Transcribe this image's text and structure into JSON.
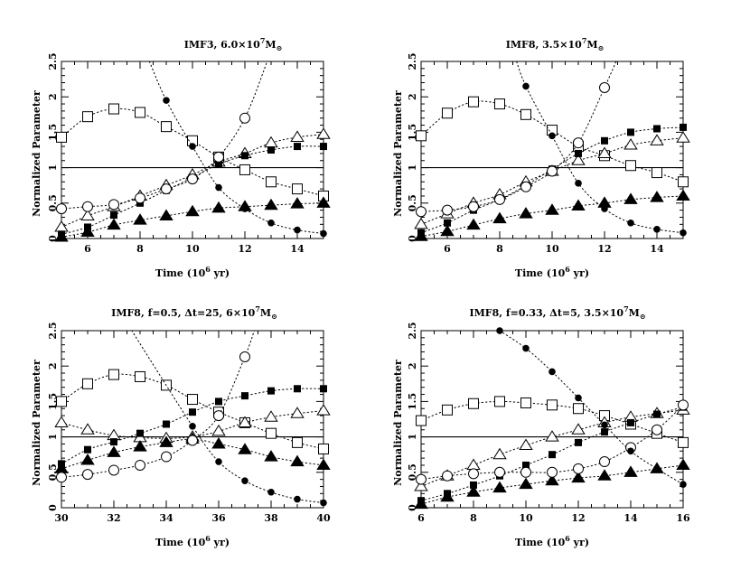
{
  "chart_data": [
    {
      "type": "line",
      "title": "IMF3, 6.0×10",
      "title_exp": "7",
      "title_unit": "M",
      "title_sub": "⊙",
      "xlabel": "Time (10",
      "xlabel_exp": "6",
      "xlabel_tail": " yr)",
      "ylabel": "Normalized Parameter",
      "xlim": [
        5,
        15
      ],
      "ylim": [
        0,
        2.5
      ],
      "xticks": [
        6,
        8,
        10,
        12,
        14
      ],
      "yticks": [
        0,
        0.5,
        1,
        1.5,
        2,
        2.5
      ],
      "reference_y": 1,
      "series": [
        {
          "marker": "open-square",
          "x": [
            5,
            6,
            7,
            8,
            9,
            10,
            11,
            12,
            13,
            14,
            15
          ],
          "values": [
            1.43,
            1.72,
            1.83,
            1.78,
            1.58,
            1.38,
            1.15,
            0.97,
            0.8,
            0.7,
            0.6
          ]
        },
        {
          "marker": "open-triangle",
          "x": [
            5,
            6,
            7,
            8,
            9,
            10,
            11,
            12,
            13,
            14,
            15
          ],
          "values": [
            0.16,
            0.32,
            0.45,
            0.6,
            0.75,
            0.9,
            1.08,
            1.2,
            1.35,
            1.43,
            1.47
          ]
        },
        {
          "marker": "filled-square",
          "x": [
            5,
            6,
            7,
            8,
            9,
            10,
            11,
            12,
            13,
            14,
            15
          ],
          "values": [
            0.06,
            0.16,
            0.33,
            0.5,
            0.68,
            0.86,
            1.05,
            1.17,
            1.25,
            1.3,
            1.3
          ]
        },
        {
          "marker": "filled-triangle",
          "x": [
            5,
            6,
            7,
            8,
            9,
            10,
            11,
            12,
            13,
            14,
            15
          ],
          "values": [
            0.02,
            0.09,
            0.19,
            0.26,
            0.32,
            0.38,
            0.43,
            0.45,
            0.47,
            0.49,
            0.5
          ]
        },
        {
          "marker": "open-circle",
          "x": [
            5,
            6,
            7,
            8,
            9,
            10,
            11,
            12
          ],
          "values": [
            0.42,
            0.45,
            0.48,
            0.57,
            0.7,
            0.84,
            1.15,
            1.7
          ],
          "curve_to": [
            12.9,
            2.55
          ]
        },
        {
          "marker": "filled-circle",
          "x": [
            9,
            10,
            11,
            12,
            13,
            14,
            15
          ],
          "values": [
            1.95,
            1.3,
            0.72,
            0.42,
            0.22,
            0.12,
            0.07
          ],
          "curve_from": [
            8.3,
            2.55
          ]
        }
      ]
    },
    {
      "type": "line",
      "title": "IMF8, 3.5×10",
      "title_exp": "7",
      "title_unit": "M",
      "title_sub": "⊙",
      "xlabel": "Time (10",
      "xlabel_exp": "6",
      "xlabel_tail": " yr)",
      "ylabel": "Normalized Parameter",
      "xlim": [
        5,
        15
      ],
      "ylim": [
        0,
        2.5
      ],
      "xticks": [
        6,
        8,
        10,
        12,
        14
      ],
      "yticks": [
        0,
        0.5,
        1,
        1.5,
        2,
        2.5
      ],
      "reference_y": 1,
      "series": [
        {
          "marker": "open-square",
          "x": [
            5,
            6,
            7,
            8,
            9,
            10,
            11,
            12,
            13,
            14,
            15
          ],
          "values": [
            1.45,
            1.77,
            1.93,
            1.9,
            1.75,
            1.53,
            1.3,
            1.17,
            1.03,
            0.93,
            0.8
          ]
        },
        {
          "marker": "open-triangle",
          "x": [
            5,
            6,
            7,
            8,
            9,
            10,
            11,
            12,
            13,
            14,
            15
          ],
          "values": [
            0.2,
            0.35,
            0.5,
            0.62,
            0.8,
            0.95,
            1.1,
            1.2,
            1.32,
            1.38,
            1.42
          ]
        },
        {
          "marker": "filled-square",
          "x": [
            5,
            6,
            7,
            8,
            9,
            10,
            11,
            12,
            13,
            14,
            15
          ],
          "values": [
            0.08,
            0.22,
            0.4,
            0.55,
            0.75,
            0.98,
            1.2,
            1.38,
            1.5,
            1.55,
            1.57
          ]
        },
        {
          "marker": "filled-triangle",
          "x": [
            5,
            6,
            7,
            8,
            9,
            10,
            11,
            12,
            13,
            14,
            15
          ],
          "values": [
            0.03,
            0.1,
            0.19,
            0.28,
            0.35,
            0.4,
            0.46,
            0.5,
            0.55,
            0.58,
            0.6
          ]
        },
        {
          "marker": "open-circle",
          "x": [
            5,
            6,
            7,
            8,
            9,
            10,
            11,
            12
          ],
          "values": [
            0.38,
            0.4,
            0.45,
            0.55,
            0.73,
            0.95,
            1.35,
            2.13
          ],
          "curve_to": [
            12.5,
            2.55
          ]
        },
        {
          "marker": "filled-circle",
          "x": [
            9,
            10,
            11,
            12,
            13,
            14,
            15
          ],
          "values": [
            2.15,
            1.45,
            0.78,
            0.42,
            0.22,
            0.13,
            0.08
          ],
          "curve_from": [
            8.6,
            2.55
          ]
        }
      ]
    },
    {
      "type": "line",
      "title": "IMF8, f=0.5, Δt=25, 6×10",
      "title_exp": "7",
      "title_unit": "M",
      "title_sub": "⊙",
      "xlabel": "Time (10",
      "xlabel_exp": "6",
      "xlabel_tail": " yr)",
      "ylabel": "Normalized Parameter",
      "xlim": [
        30,
        40
      ],
      "ylim": [
        0,
        2.5
      ],
      "xticks": [
        30,
        32,
        34,
        36,
        38,
        40
      ],
      "yticks": [
        0,
        0.5,
        1,
        1.5,
        2,
        2.5
      ],
      "reference_y": 1,
      "series": [
        {
          "marker": "open-square",
          "x": [
            30,
            31,
            32,
            33,
            34,
            35,
            36,
            37,
            38,
            39,
            40
          ],
          "values": [
            1.5,
            1.75,
            1.88,
            1.85,
            1.73,
            1.53,
            1.35,
            1.2,
            1.05,
            0.92,
            0.83
          ]
        },
        {
          "marker": "open-triangle",
          "x": [
            30,
            31,
            32,
            33,
            34,
            35,
            36,
            37,
            38,
            39,
            40
          ],
          "values": [
            1.2,
            1.1,
            1.02,
            0.99,
            0.98,
            1.0,
            1.08,
            1.2,
            1.28,
            1.33,
            1.37
          ]
        },
        {
          "marker": "filled-square",
          "x": [
            30,
            31,
            32,
            33,
            34,
            35,
            36,
            37,
            38,
            39,
            40
          ],
          "values": [
            0.62,
            0.82,
            0.93,
            1.05,
            1.18,
            1.35,
            1.5,
            1.58,
            1.65,
            1.68,
            1.68
          ]
        },
        {
          "marker": "filled-triangle",
          "x": [
            30,
            31,
            32,
            33,
            34,
            35,
            36,
            37,
            38,
            39,
            40
          ],
          "values": [
            0.55,
            0.67,
            0.78,
            0.86,
            0.92,
            0.97,
            0.9,
            0.82,
            0.72,
            0.65,
            0.6
          ]
        },
        {
          "marker": "open-circle",
          "x": [
            30,
            31,
            32,
            33,
            34,
            35,
            36,
            37
          ],
          "values": [
            0.43,
            0.47,
            0.53,
            0.6,
            0.72,
            0.95,
            1.3,
            2.13
          ],
          "curve_to": [
            37.4,
            2.55
          ]
        },
        {
          "marker": "filled-circle",
          "x": [
            35,
            36,
            37,
            38,
            39,
            40
          ],
          "values": [
            1.15,
            0.65,
            0.38,
            0.22,
            0.12,
            0.07
          ],
          "curve_from": [
            32.6,
            2.55
          ]
        }
      ]
    },
    {
      "type": "line",
      "title": "IMF8, f=0.33, Δt=5, 3.5×10",
      "title_exp": "7",
      "title_unit": "M",
      "title_sub": "⊙",
      "xlabel": "Time (10",
      "xlabel_exp": "6",
      "xlabel_tail": " yr)",
      "ylabel": "Normalized Parameter",
      "xlim": [
        6,
        16
      ],
      "ylim": [
        0,
        2.5
      ],
      "xticks": [
        6,
        8,
        10,
        12,
        14,
        16
      ],
      "yticks": [
        0,
        0.5,
        1,
        1.5,
        2,
        2.5
      ],
      "reference_y": 1,
      "series": [
        {
          "marker": "open-square",
          "x": [
            6,
            7,
            8,
            9,
            10,
            11,
            12,
            13,
            14,
            15,
            16
          ],
          "values": [
            1.23,
            1.38,
            1.47,
            1.5,
            1.48,
            1.45,
            1.4,
            1.3,
            1.18,
            1.05,
            0.92
          ]
        },
        {
          "marker": "open-triangle",
          "x": [
            6,
            7,
            8,
            9,
            10,
            11,
            12,
            13,
            14,
            15,
            16
          ],
          "values": [
            0.3,
            0.45,
            0.6,
            0.75,
            0.88,
            1.0,
            1.1,
            1.2,
            1.28,
            1.33,
            1.38
          ]
        },
        {
          "marker": "filled-square",
          "x": [
            6,
            7,
            8,
            9,
            10,
            11,
            12,
            13,
            14,
            15,
            16
          ],
          "values": [
            0.1,
            0.2,
            0.32,
            0.45,
            0.6,
            0.75,
            0.92,
            1.07,
            1.2,
            1.32,
            1.42
          ]
        },
        {
          "marker": "filled-triangle",
          "x": [
            6,
            7,
            8,
            9,
            10,
            11,
            12,
            13,
            14,
            15,
            16
          ],
          "values": [
            0.05,
            0.15,
            0.22,
            0.28,
            0.33,
            0.38,
            0.42,
            0.45,
            0.5,
            0.55,
            0.6
          ]
        },
        {
          "marker": "open-circle",
          "x": [
            6,
            7,
            8,
            9,
            10,
            11,
            12,
            13,
            14,
            15,
            16
          ],
          "values": [
            0.4,
            0.45,
            0.48,
            0.5,
            0.5,
            0.5,
            0.55,
            0.65,
            0.85,
            1.1,
            1.45
          ]
        },
        {
          "marker": "filled-circle",
          "x": [
            9,
            10,
            11,
            12,
            13,
            14,
            15,
            16
          ],
          "values": [
            2.5,
            2.25,
            1.92,
            1.55,
            1.17,
            0.8,
            0.55,
            0.33
          ]
        }
      ]
    }
  ]
}
